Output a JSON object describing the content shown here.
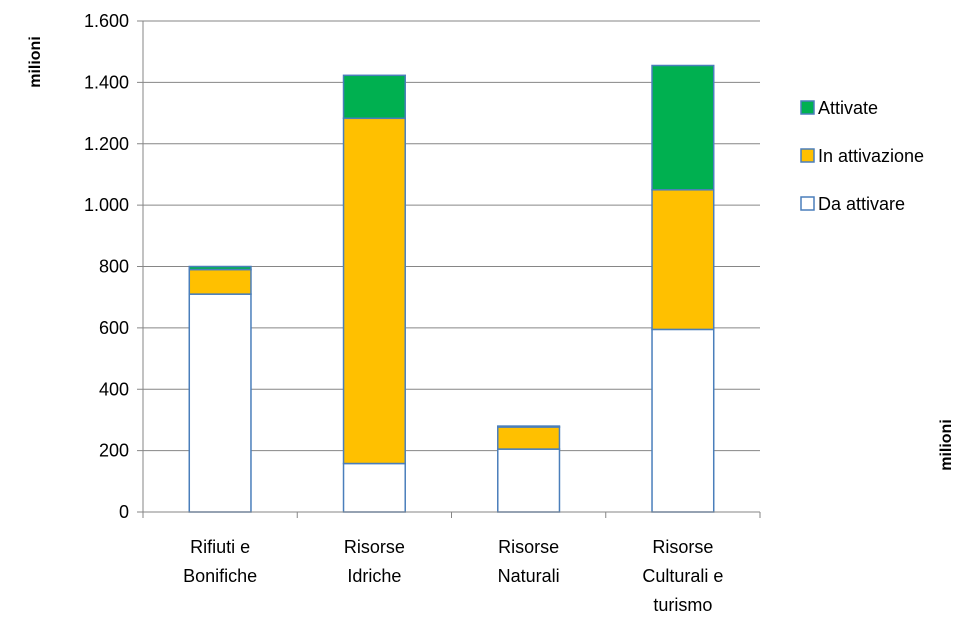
{
  "chart_data": {
    "type": "bar",
    "stacked": true,
    "title": "",
    "ylabel": "milioni",
    "ylabel_right": "milioni",
    "xlabel": "",
    "ylim": [
      0,
      1600
    ],
    "yticks": [
      0,
      200,
      400,
      600,
      800,
      1000,
      1200,
      1400,
      1600
    ],
    "ytick_labels": [
      "0",
      "200",
      "400",
      "600",
      "800",
      "1.000",
      "1.200",
      "1.400",
      "1.600"
    ],
    "categories": [
      [
        "Rifiuti e",
        "Bonifiche"
      ],
      [
        "Risorse",
        "Idriche"
      ],
      [
        "Risorse",
        "Naturali"
      ],
      [
        "Risorse",
        "Culturali e",
        "turismo"
      ]
    ],
    "series": [
      {
        "name": "Da attivare",
        "color": "#ffffff",
        "values": [
          710,
          158,
          205,
          595
        ]
      },
      {
        "name": "In attivazione",
        "color": "#ffc000",
        "values": [
          80,
          1125,
          72,
          455
        ]
      },
      {
        "name": "Attivate",
        "color": "#00b050",
        "values": [
          10,
          140,
          3,
          405
        ]
      }
    ],
    "legend_order": [
      "Attivate",
      "In attivazione",
      "Da attivare"
    ],
    "legend_position": "right",
    "grid": true,
    "bar_outline_color": "#4a7ebb"
  }
}
